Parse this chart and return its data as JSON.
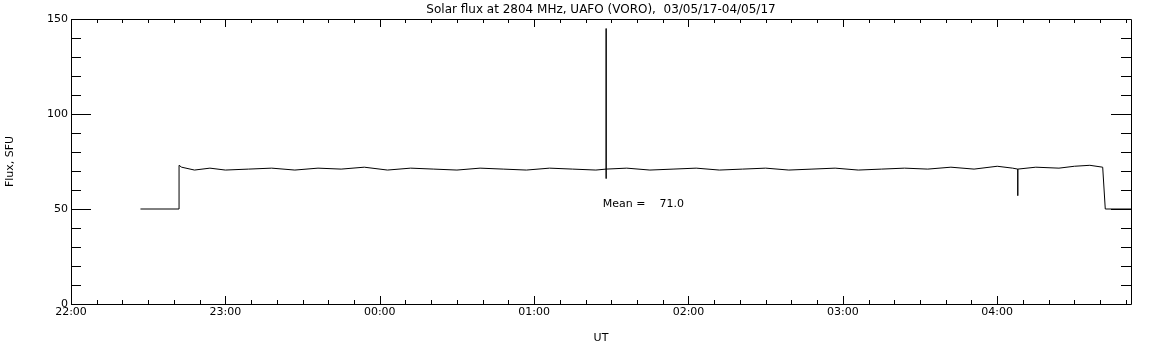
{
  "chart_data": {
    "type": "line",
    "title": "Solar flux at 2804 MHz, UAFO (VORO),  03/05/17-04/05/17",
    "xlabel": "UT",
    "ylabel": "Flux, SFU",
    "xlim": [
      "--05-03T22:00",
      "--05-04T04:52"
    ],
    "ylim": [
      0,
      150
    ],
    "xticks": [
      {
        "value": "--05-03T22:00",
        "label": "22:00"
      },
      {
        "value": "--05-03T22:10",
        "label": null
      },
      {
        "value": "--05-03T22:20",
        "label": null
      },
      {
        "value": "--05-03T22:30",
        "label": null
      },
      {
        "value": "--05-03T22:40",
        "label": null
      },
      {
        "value": "--05-03T22:50",
        "label": null
      },
      {
        "value": "--05-03T23:00",
        "label": "23:00"
      },
      {
        "value": "--05-03T23:10",
        "label": null
      },
      {
        "value": "--05-03T23:20",
        "label": null
      },
      {
        "value": "--05-03T23:30",
        "label": null
      },
      {
        "value": "--05-03T23:40",
        "label": null
      },
      {
        "value": "--05-03T23:50",
        "label": null
      },
      {
        "value": "--05-04T00:00",
        "label": "00:00"
      },
      {
        "value": "--05-04T00:10",
        "label": null
      },
      {
        "value": "--05-04T00:20",
        "label": null
      },
      {
        "value": "--05-04T00:30",
        "label": null
      },
      {
        "value": "--05-04T00:40",
        "label": null
      },
      {
        "value": "--05-04T00:50",
        "label": null
      },
      {
        "value": "--05-04T01:00",
        "label": "01:00"
      },
      {
        "value": "--05-04T01:10",
        "label": null
      },
      {
        "value": "--05-04T01:20",
        "label": null
      },
      {
        "value": "--05-04T01:30",
        "label": null
      },
      {
        "value": "--05-04T01:40",
        "label": null
      },
      {
        "value": "--05-04T01:50",
        "label": null
      },
      {
        "value": "--05-04T02:00",
        "label": "02:00"
      },
      {
        "value": "--05-04T02:10",
        "label": null
      },
      {
        "value": "--05-04T02:20",
        "label": null
      },
      {
        "value": "--05-04T02:30",
        "label": null
      },
      {
        "value": "--05-04T02:40",
        "label": null
      },
      {
        "value": "--05-04T02:50",
        "label": null
      },
      {
        "value": "--05-04T03:00",
        "label": "03:00"
      },
      {
        "value": "--05-04T03:10",
        "label": null
      },
      {
        "value": "--05-04T03:20",
        "label": null
      },
      {
        "value": "--05-04T03:30",
        "label": null
      },
      {
        "value": "--05-04T03:40",
        "label": null
      },
      {
        "value": "--05-04T03:50",
        "label": null
      },
      {
        "value": "--05-04T04:00",
        "label": "04:00"
      },
      {
        "value": "--05-04T04:10",
        "label": null
      },
      {
        "value": "--05-04T04:20",
        "label": null
      },
      {
        "value": "--05-04T04:30",
        "label": null
      },
      {
        "value": "--05-04T04:40",
        "label": null
      },
      {
        "value": "--05-04T04:50",
        "label": null
      }
    ],
    "yticks": [
      0,
      {
        "value": 10,
        "label": null
      },
      {
        "value": 20,
        "label": null
      },
      {
        "value": 30,
        "label": null
      },
      {
        "value": 40,
        "label": null
      },
      50,
      {
        "value": 60,
        "label": null
      },
      {
        "value": 70,
        "label": null
      },
      {
        "value": 80,
        "label": null
      },
      {
        "value": 90,
        "label": null
      },
      100,
      {
        "value": 110,
        "label": null
      },
      {
        "value": 120,
        "label": null
      },
      {
        "value": 130,
        "label": null
      },
      {
        "value": 140,
        "label": null
      },
      150
    ],
    "marker": "none",
    "series": [
      {
        "color": "#000000",
        "x": [
          "--05-03T22:27",
          "--05-03T22:42",
          "--05-03T22:42",
          "--05-03T22:43",
          "--05-03T22:48",
          "--05-03T22:54",
          "--05-03T23:00",
          "--05-03T23:09",
          "--05-03T23:18",
          "--05-03T23:27",
          "--05-03T23:36",
          "--05-03T23:45",
          "--05-03T23:54",
          "--05-04T00:03",
          "--05-04T00:12",
          "--05-04T00:21",
          "--05-04T00:30",
          "--05-04T00:39",
          "--05-04T00:48",
          "--05-04T00:57",
          "--05-04T01:06",
          "--05-04T01:15",
          "--05-04T01:24",
          "--05-04T01:28",
          "--05-04T01:28",
          "--05-04T01:28",
          "--05-04T01:28",
          "--05-04T01:36",
          "--05-04T01:45",
          "--05-04T01:54",
          "--05-04T02:03",
          "--05-04T02:12",
          "--05-04T02:21",
          "--05-04T02:30",
          "--05-04T02:39",
          "--05-04T02:48",
          "--05-04T02:57",
          "--05-04T03:06",
          "--05-04T03:15",
          "--05-04T03:24",
          "--05-04T03:33",
          "--05-04T03:42",
          "--05-04T03:51",
          "--05-04T04:00",
          "--05-04T04:06",
          "--05-04T04:08",
          "--05-04T04:08",
          "--05-04T04:08",
          "--05-04T04:15",
          "--05-04T04:24",
          "--05-04T04:30",
          "--05-04T04:36",
          "--05-04T04:41",
          "--05-04T04:42",
          "--05-04T04:52"
        ],
        "values": [
          50,
          50,
          73,
          72,
          70.5,
          71.5,
          70.5,
          71,
          71.5,
          70.5,
          71.5,
          71,
          72,
          70.5,
          71.5,
          71,
          70.5,
          71.5,
          71,
          70.5,
          71.5,
          71,
          70.5,
          71,
          145,
          66,
          71,
          71.5,
          70.5,
          71,
          71.5,
          70.5,
          71,
          71.5,
          70.5,
          71,
          71.5,
          70.5,
          71,
          71.5,
          71,
          72,
          71,
          72.5,
          71.5,
          71,
          57,
          71,
          72,
          71.5,
          72.5,
          73,
          72,
          50,
          50
        ]
      }
    ],
    "annotations": [
      "Mean =    71.0"
    ]
  }
}
